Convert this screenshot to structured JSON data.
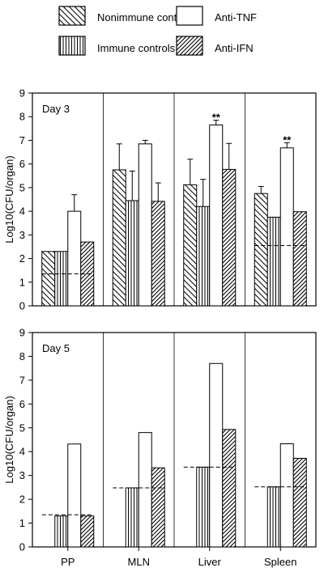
{
  "legend": {
    "items": [
      {
        "label": "Nonimmune controls",
        "pattern": "diag-back"
      },
      {
        "label": "Anti-TNF",
        "pattern": "white"
      },
      {
        "label": "Immune controls",
        "pattern": "vertical"
      },
      {
        "label": "Anti-IFN",
        "pattern": "diag-fwd"
      }
    ]
  },
  "chart_data": [
    {
      "type": "bar",
      "panel_label": "Day 3",
      "ylabel": "Log10(CFU/organ)",
      "ylim": [
        0,
        9
      ],
      "yticks": [
        "0",
        "1",
        "2",
        "3",
        "4",
        "5",
        "6",
        "7",
        "8",
        "9"
      ],
      "categories": [
        "PP",
        "MLN",
        "Liver",
        "Spleen"
      ],
      "show_category_labels": false,
      "series": [
        {
          "name": "Nonimmune controls",
          "pattern": "diag-back",
          "values": [
            2.3,
            5.75,
            5.12,
            4.75
          ],
          "err": [
            null,
            6.85,
            6.2,
            5.05
          ]
        },
        {
          "name": "Immune controls",
          "pattern": "vertical",
          "values": [
            2.3,
            4.45,
            4.2,
            3.75
          ],
          "err": [
            null,
            5.7,
            5.35,
            null
          ]
        },
        {
          "name": "Anti-TNF",
          "pattern": "white",
          "values": [
            4.0,
            6.85,
            7.65,
            6.68
          ],
          "err": [
            4.7,
            7.0,
            7.85,
            6.9
          ]
        },
        {
          "name": "Anti-IFN",
          "pattern": "diag-fwd",
          "values": [
            2.7,
            4.42,
            5.77,
            3.98
          ],
          "err": [
            null,
            5.2,
            6.87,
            null
          ]
        }
      ],
      "detection_limit": [
        1.35,
        null,
        null,
        2.55
      ],
      "significance_markers": [
        {
          "category": "Liver",
          "series": "Anti-TNF",
          "text": "**"
        },
        {
          "category": "Spleen",
          "series": "Anti-TNF",
          "text": "**"
        }
      ]
    },
    {
      "type": "bar",
      "panel_label": "Day 5",
      "ylabel": "Log10(CFU/organ)",
      "ylim": [
        0,
        9
      ],
      "yticks": [
        "0",
        "1",
        "2",
        "3",
        "4",
        "5",
        "6",
        "7",
        "8",
        "9"
      ],
      "categories": [
        "PP",
        "MLN",
        "Liver",
        "Spleen"
      ],
      "show_category_labels": true,
      "series": [
        {
          "name": "Nonimmune controls",
          "pattern": "diag-back",
          "values": [
            null,
            null,
            null,
            null
          ],
          "err": [
            null,
            null,
            null,
            null
          ]
        },
        {
          "name": "Immune controls",
          "pattern": "vertical",
          "values": [
            1.3,
            2.48,
            3.35,
            2.52
          ],
          "err": [
            null,
            null,
            null,
            null
          ]
        },
        {
          "name": "Anti-TNF",
          "pattern": "white",
          "values": [
            4.32,
            4.8,
            7.7,
            4.33
          ],
          "err": [
            null,
            null,
            null,
            null
          ]
        },
        {
          "name": "Anti-IFN",
          "pattern": "diag-fwd",
          "values": [
            1.3,
            3.32,
            4.93,
            3.72
          ],
          "err": [
            null,
            null,
            null,
            null
          ]
        }
      ],
      "detection_limit": [
        1.35,
        2.48,
        3.35,
        2.52
      ],
      "significance_markers": []
    }
  ]
}
